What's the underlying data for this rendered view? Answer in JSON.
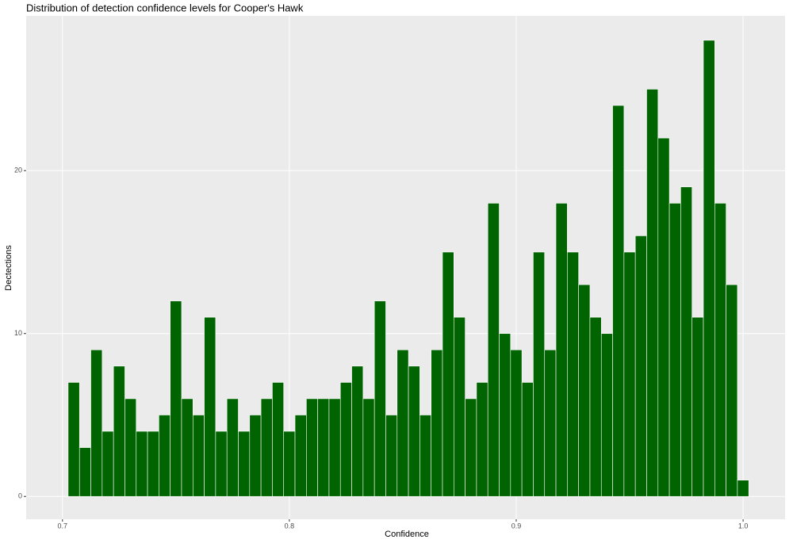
{
  "chart_data": {
    "type": "histogram",
    "title": "Distribution of detection confidence levels for Cooper's Hawk",
    "x_label": "Confidence",
    "y_label": "Dectections",
    "bins": [
      0.7025,
      0.7075,
      0.7125,
      0.7175,
      0.7225,
      0.7275,
      0.7325,
      0.7375,
      0.7425,
      0.7475,
      0.7525,
      0.7575,
      0.7625,
      0.7675,
      0.7725,
      0.7775,
      0.7825,
      0.7875,
      0.7925,
      0.7975,
      0.8025,
      0.8075,
      0.8125,
      0.8175,
      0.8225,
      0.8275,
      0.8325,
      0.8375,
      0.8425,
      0.8475,
      0.8525,
      0.8575,
      0.8625,
      0.8675,
      0.8725,
      0.8775,
      0.8825,
      0.8875,
      0.8925,
      0.8975,
      0.9025,
      0.9075,
      0.9125,
      0.9175,
      0.9225,
      0.9275,
      0.9325,
      0.9375,
      0.9425,
      0.9475,
      0.9525,
      0.9575,
      0.9625,
      0.9675,
      0.9725,
      0.9775,
      0.9825,
      0.9875,
      0.9925,
      0.9975,
      1.0025
    ],
    "values": [
      7,
      3,
      9,
      4,
      8,
      6,
      4,
      4,
      5,
      12,
      6,
      5,
      11,
      4,
      6,
      4,
      5,
      6,
      7,
      4,
      5,
      6,
      6,
      6,
      7,
      8,
      6,
      12,
      5,
      9,
      8,
      5,
      9,
      15,
      11,
      6,
      7,
      18,
      10,
      9,
      7,
      15,
      9,
      18,
      15,
      13,
      11,
      10,
      24,
      15,
      16,
      25,
      22,
      18,
      19,
      11,
      28,
      18,
      13,
      1
    ],
    "color": "#006400",
    "xlim": [
      0.684,
      1.0185
    ],
    "ylim": [
      -1.4,
      29.5
    ],
    "xticks": [
      0.7,
      0.8,
      0.9,
      {
        "value": 1.0,
        "label": "1.0"
      }
    ],
    "yticks": [
      0,
      10,
      20
    ],
    "grid": true
  }
}
